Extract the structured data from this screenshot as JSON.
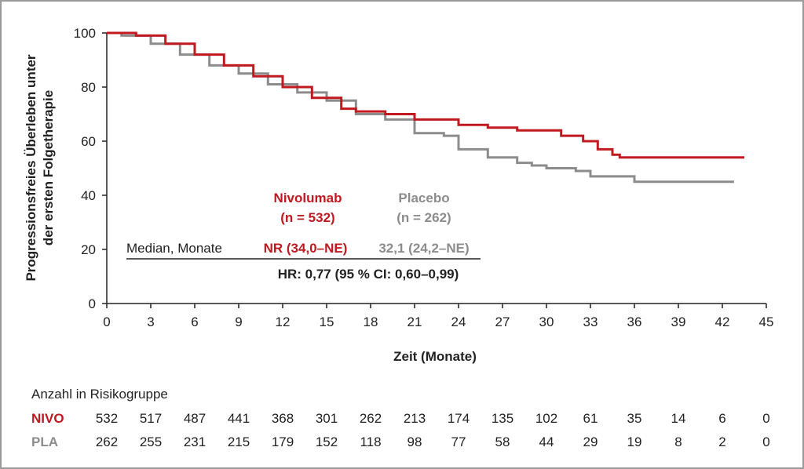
{
  "chart_data": {
    "type": "line",
    "ylabel": [
      "Progressionsfreies Überleben unter",
      "der ersten Folgetherapie"
    ],
    "xlabel": "Zeit (Monate)",
    "xlim": [
      0,
      45
    ],
    "ylim": [
      0,
      100
    ],
    "xticks": [
      0,
      3,
      6,
      9,
      12,
      15,
      18,
      21,
      24,
      27,
      30,
      33,
      36,
      39,
      42,
      45
    ],
    "yticks": [
      0,
      20,
      40,
      60,
      80,
      100
    ],
    "grid": false,
    "colors": {
      "nivo": "#c0191f",
      "pla": "#8c8c8c",
      "text": "#222222"
    },
    "series": [
      {
        "key": "nivo",
        "x": [
          0,
          2,
          4,
          6,
          8,
          10,
          12,
          14,
          16,
          17,
          19,
          21,
          24,
          26,
          28,
          30,
          31,
          32.5,
          33.5,
          34.5,
          35,
          40,
          43.5
        ],
        "y": [
          100,
          99,
          96,
          92,
          88,
          84,
          80,
          76,
          72,
          71,
          70,
          68,
          66,
          65,
          64,
          64,
          62,
          60,
          57,
          55,
          54,
          54,
          54
        ]
      },
      {
        "key": "pla",
        "x": [
          0,
          1,
          3,
          5,
          7,
          9,
          11,
          13,
          15,
          17,
          19,
          21,
          23,
          24,
          26,
          28,
          29,
          30,
          32,
          33,
          35,
          36,
          40,
          42.8
        ],
        "y": [
          100,
          99,
          96,
          92,
          88,
          85,
          81,
          78,
          75,
          70,
          68,
          63,
          62,
          57,
          54,
          52,
          51,
          50,
          49,
          47,
          47,
          45,
          45,
          45
        ]
      }
    ],
    "legend": {
      "nivo_name": "Nivolumab",
      "nivo_n": "(n = 532)",
      "pla_name": "Placebo",
      "pla_n": "(n = 262)",
      "median_label": "Median, Monate",
      "nivo_median": "NR (34,0–NE)",
      "pla_median": "32,1 (24,2–NE)",
      "hr": "HR: 0,77 (95 % CI: 0,60–0,99)"
    },
    "risk_table": {
      "title": "Anzahl in Risikogruppe",
      "nivo_label": "NIVO",
      "pla_label": "PLA",
      "nivo": [
        "532",
        "517",
        "487",
        "441",
        "368",
        "301",
        "262",
        "213",
        "174",
        "135",
        "102",
        "61",
        "35",
        "14",
        "6",
        "0"
      ],
      "pla": [
        "262",
        "255",
        "231",
        "215",
        "179",
        "152",
        "118",
        "98",
        "77",
        "58",
        "44",
        "29",
        "19",
        "8",
        "2",
        "0"
      ]
    }
  }
}
